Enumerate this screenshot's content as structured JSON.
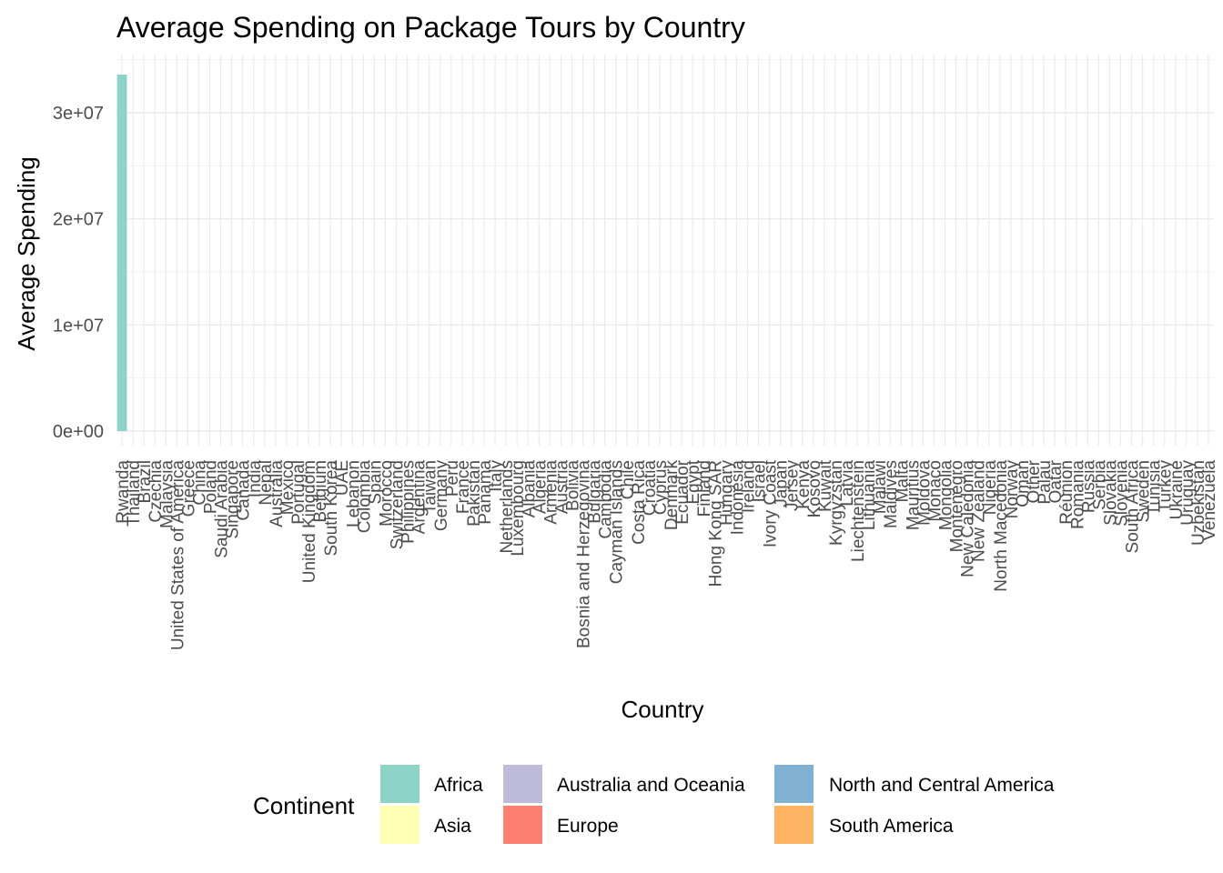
{
  "chart_data": {
    "type": "bar",
    "title": "Average Spending on Package Tours by Country",
    "xlabel": "Country",
    "ylabel": "Average Spending",
    "ylim": [
      0,
      33500000
    ],
    "yticks": [
      0,
      10000000,
      20000000,
      30000000
    ],
    "ytick_labels": [
      "0e+00",
      "1e+07",
      "2e+07",
      "3e+07"
    ],
    "grid": true,
    "legend_position": "bottom",
    "legend_title": "Continent",
    "legend": [
      {
        "name": "Africa",
        "color": "#8DD3C7"
      },
      {
        "name": "Asia",
        "color": "#FFFFB3"
      },
      {
        "name": "Australia and Oceania",
        "color": "#BEBADA"
      },
      {
        "name": "Europe",
        "color": "#FB8072"
      },
      {
        "name": "North and Central America",
        "color": "#80B1D3"
      },
      {
        "name": "South America",
        "color": "#FDB462"
      }
    ],
    "categories": [
      "Rwanda",
      "Thailand",
      "Brazil",
      "Czechia",
      "Malaysia",
      "United States of America",
      "Greece",
      "China",
      "Poland",
      "Saudi Arabia",
      "Singapore",
      "Canada",
      "India",
      "Nepal",
      "Australia",
      "Mexico",
      "Portugal",
      "United Kingdom",
      "Belgium",
      "South Korea",
      "UAE",
      "Lebanon",
      "Colombia",
      "Spain",
      "Morocco",
      "Switzerland",
      "Philippines",
      "Argentina",
      "Taiwan",
      "Germany",
      "Peru",
      "France",
      "Pakistan",
      "Panama",
      "Italy",
      "Netherlands",
      "Luxembourg",
      "Albania",
      "Algeria",
      "Armenia",
      "Austria",
      "Bolivia",
      "Bosnia and Herzegovina",
      "Bulgaria",
      "Cambodia",
      "Cayman Islands",
      "Chile",
      "Costa Rica",
      "Croatia",
      "Cyprus",
      "Denmark",
      "Ecuador",
      "Egypt",
      "Finland",
      "Hong Kong SAR",
      "Hungary",
      "Indonesia",
      "Ireland",
      "Israel",
      "Ivory Coast",
      "Japan",
      "Jersey",
      "Kenya",
      "Kosovo",
      "Kuwait",
      "Kyrgyzstan",
      "Latvia",
      "Liechtenstein",
      "Lithuania",
      "Malawi",
      "Maldives",
      "Malta",
      "Mauritius",
      "Moldova",
      "Monaco",
      "Mongolia",
      "Montenegro",
      "New Caledonia",
      "New Zealand",
      "Nigeria",
      "North Macedonia",
      "Norway",
      "Oman",
      "Other",
      "Palau",
      "Qatar",
      "Réunion",
      "Romania",
      "Russia",
      "Serbia",
      "Slovakia",
      "Slovenia",
      "South Africa",
      "Sweden",
      "Tunisia",
      "Turkey",
      "Ukraine",
      "Uruguay",
      "Uzbekistan",
      "Venezuela"
    ],
    "values": [
      33600000,
      0,
      0,
      0,
      0,
      0,
      0,
      0,
      0,
      0,
      0,
      0,
      0,
      0,
      0,
      0,
      0,
      0,
      0,
      0,
      0,
      0,
      0,
      0,
      0,
      0,
      0,
      0,
      0,
      0,
      0,
      0,
      0,
      0,
      0,
      0,
      0,
      0,
      0,
      0,
      0,
      0,
      0,
      0,
      0,
      0,
      0,
      0,
      0,
      0,
      0,
      0,
      0,
      0,
      0,
      0,
      0,
      0,
      0,
      0,
      0,
      0,
      0,
      0,
      0,
      0,
      0,
      0,
      0,
      0,
      0,
      0,
      0,
      0,
      0,
      0,
      0,
      0,
      0,
      0,
      0,
      0,
      0,
      0,
      0,
      0,
      0,
      0,
      0,
      0,
      0,
      0,
      0,
      0,
      0,
      0,
      0,
      0,
      0,
      0
    ],
    "continents": [
      "Africa",
      "Asia",
      "South America",
      "Europe",
      "Asia",
      "North and Central America",
      "Europe",
      "Asia",
      "Europe",
      "Asia",
      "Asia",
      "North and Central America",
      "Asia",
      "Asia",
      "Australia and Oceania",
      "North and Central America",
      "Europe",
      "Europe",
      "Europe",
      "Asia",
      "Asia",
      "Asia",
      "South America",
      "Europe",
      "Africa",
      "Europe",
      "Asia",
      "South America",
      "Asia",
      "Europe",
      "South America",
      "Europe",
      "Asia",
      "North and Central America",
      "Europe",
      "Europe",
      "Europe",
      "Europe",
      "Africa",
      "Asia",
      "Europe",
      "South America",
      "Europe",
      "Europe",
      "Asia",
      "North and Central America",
      "South America",
      "North and Central America",
      "Europe",
      "Europe",
      "Europe",
      "South America",
      "Africa",
      "Europe",
      "Asia",
      "Europe",
      "Asia",
      "Europe",
      "Asia",
      "Africa",
      "Asia",
      "Europe",
      "Africa",
      "Europe",
      "Asia",
      "Asia",
      "Europe",
      "Europe",
      "Europe",
      "Africa",
      "Asia",
      "Europe",
      "Africa",
      "Europe",
      "Europe",
      "Asia",
      "Europe",
      "Australia and Oceania",
      "Australia and Oceania",
      "Africa",
      "Europe",
      "Europe",
      "Asia",
      "Asia",
      "Australia and Oceania",
      "Asia",
      "Africa",
      "Europe",
      "Europe",
      "Europe",
      "Europe",
      "Europe",
      "Africa",
      "Europe",
      "Africa",
      "Asia",
      "Europe",
      "South America",
      "Asia",
      "South America"
    ]
  }
}
